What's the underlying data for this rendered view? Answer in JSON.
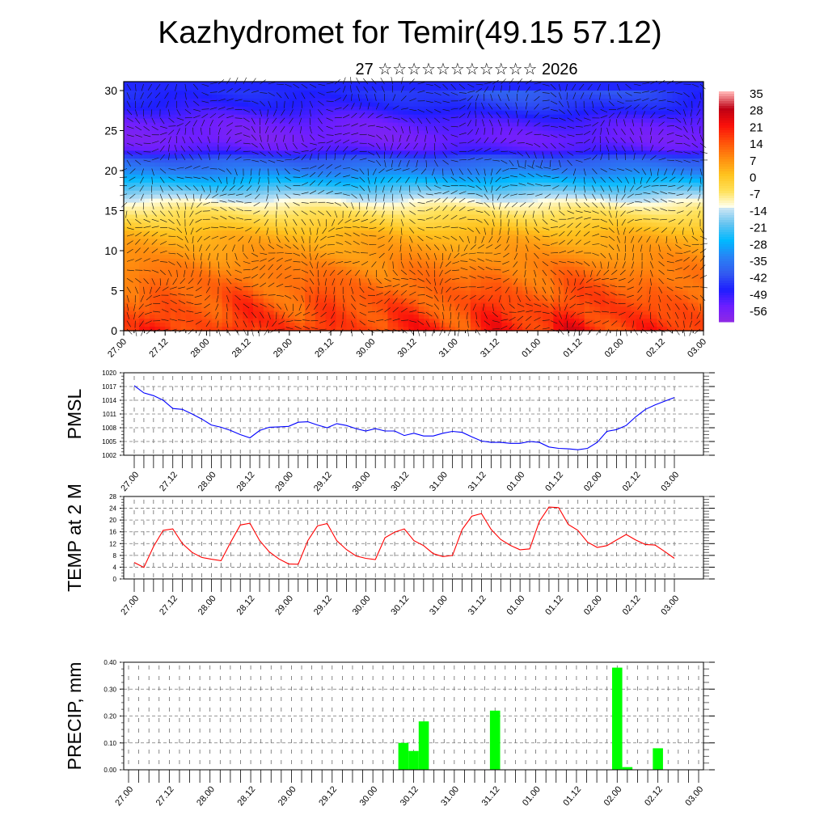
{
  "title": "Kazhydromet for Temir(49.15 57.12)",
  "subtitle": "27 ☆☆☆☆☆☆☆☆☆☆☆ 2026",
  "x_labels": [
    "27.00",
    "27.12",
    "28.00",
    "28.12",
    "29.00",
    "29.12",
    "30.00",
    "30.12",
    "31.00",
    "31.12",
    "01.00",
    "01.12",
    "02.00",
    "02.12",
    "03.00"
  ],
  "chart_data": [
    {
      "type": "heatmap",
      "name": "temperature-cross-section",
      "ylabel": "",
      "y_ticks": [
        0,
        5,
        10,
        15,
        20,
        25,
        30
      ],
      "ylim": [
        0,
        30
      ],
      "colorbar": {
        "labels": [
          "35",
          "28",
          "21",
          "14",
          "7",
          "0",
          "-7",
          "-14",
          "-21",
          "-28",
          "-35",
          "-42",
          "-49",
          "-56"
        ]
      },
      "overlay": "wind vectors"
    },
    {
      "type": "line",
      "name": "pmsl",
      "ylabel": "PMSL",
      "y_ticks": [
        "1002",
        "1005",
        "1008",
        "1011",
        "1014",
        "1017",
        "1020"
      ],
      "ylim": [
        1002,
        1020
      ],
      "x_step_hours": 3,
      "color": "#0000ff",
      "values": [
        1017.2,
        1015.6,
        1015.0,
        1014.0,
        1012.2,
        1012.0,
        1011.0,
        1009.9,
        1008.6,
        1008.1,
        1007.4,
        1006.5,
        1005.8,
        1007.4,
        1008.1,
        1008.2,
        1008.3,
        1009.2,
        1009.3,
        1008.6,
        1008.0,
        1008.9,
        1008.5,
        1007.8,
        1007.3,
        1007.8,
        1007.3,
        1007.3,
        1006.3,
        1006.8,
        1006.2,
        1006.2,
        1006.8,
        1007.2,
        1007.0,
        1006.0,
        1005.1,
        1004.8,
        1004.8,
        1004.6,
        1004.6,
        1005.0,
        1004.8,
        1003.8,
        1003.5,
        1003.4,
        1003.2,
        1003.5,
        1004.8,
        1007.2,
        1007.6,
        1008.5,
        1010.4,
        1012.0,
        1013.0,
        1013.8,
        1014.6
      ]
    },
    {
      "type": "line",
      "name": "temp-2m",
      "ylabel": "TEMP at 2 M",
      "y_ticks": [
        "0",
        "4",
        "8",
        "12",
        "16",
        "20",
        "24",
        "28"
      ],
      "ylim": [
        0,
        28
      ],
      "x_step_hours": 3,
      "color": "#ff0000",
      "values": [
        5.6,
        3.9,
        11.0,
        16.5,
        17.0,
        12.0,
        9.0,
        7.3,
        6.7,
        6.2,
        12.5,
        18.3,
        18.9,
        13.0,
        9.2,
        6.8,
        5.1,
        5.0,
        13.0,
        18.0,
        18.8,
        13.0,
        10.0,
        7.8,
        7.0,
        6.6,
        14.0,
        15.9,
        17.0,
        13.0,
        11.3,
        8.6,
        7.6,
        8.0,
        16.8,
        21.3,
        22.2,
        16.8,
        13.4,
        11.4,
        9.9,
        10.2,
        19.5,
        24.4,
        24.2,
        18.5,
        16.5,
        12.5,
        10.7,
        11.3,
        13.2,
        15.1,
        13.2,
        11.7,
        11.5,
        9.3,
        7.0
      ]
    },
    {
      "type": "bar",
      "name": "precip",
      "ylabel": "PRECIP, mm",
      "y_ticks": [
        "0.00",
        "0.10",
        "0.20",
        "0.30",
        "0.40"
      ],
      "ylim": [
        0,
        0.4
      ],
      "x_step_hours": 3,
      "color": "#00ff00",
      "values": [
        0,
        0,
        0,
        0,
        0,
        0,
        0,
        0,
        0,
        0,
        0,
        0,
        0,
        0,
        0,
        0,
        0,
        0,
        0,
        0,
        0,
        0,
        0,
        0,
        0,
        0,
        0,
        0.1,
        0.07,
        0.18,
        0,
        0,
        0,
        0,
        0,
        0,
        0.22,
        0,
        0,
        0,
        0,
        0,
        0,
        0,
        0,
        0,
        0,
        0,
        0.38,
        0.01,
        0,
        0,
        0.08,
        0,
        0,
        0,
        0
      ]
    }
  ]
}
